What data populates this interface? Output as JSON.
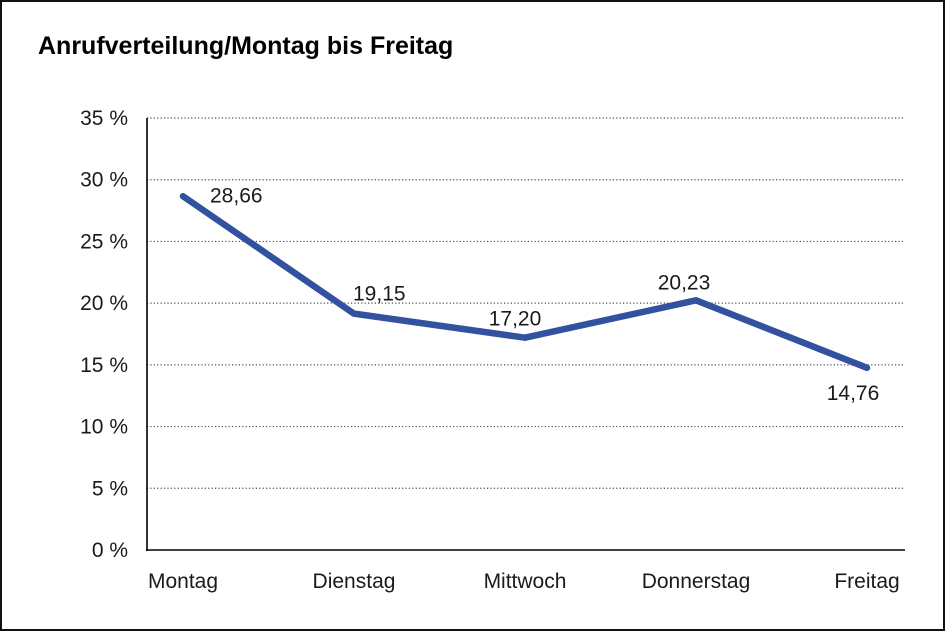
{
  "chart_data": {
    "type": "line",
    "title": "Anrufverteilung/Montag bis Freitag",
    "categories": [
      "Montag",
      "Dienstag",
      "Mittwoch",
      "Donnerstag",
      "Freitag"
    ],
    "values": [
      28.66,
      19.15,
      17.2,
      20.23,
      14.76
    ],
    "value_labels": [
      "28,66",
      "19,15",
      "17,20",
      "20,23",
      "14,76"
    ],
    "y_tick_labels": [
      "35 %",
      "30 %",
      "25 %",
      "20 %",
      "15 %",
      "10 %",
      "5 %",
      "0 %"
    ],
    "y_tick_values": [
      35,
      30,
      25,
      20,
      15,
      10,
      5,
      0
    ],
    "ylim": [
      0,
      35
    ],
    "xlabel": "",
    "ylabel": "",
    "legend": "none",
    "grid": "horizontal-dotted",
    "colors": {
      "line": "#32519e",
      "axis": "#000000",
      "grid_dots": "#4d4d4d",
      "text": "#1a1a1a",
      "background": "#ffffff",
      "frame_border": "#111111"
    }
  }
}
